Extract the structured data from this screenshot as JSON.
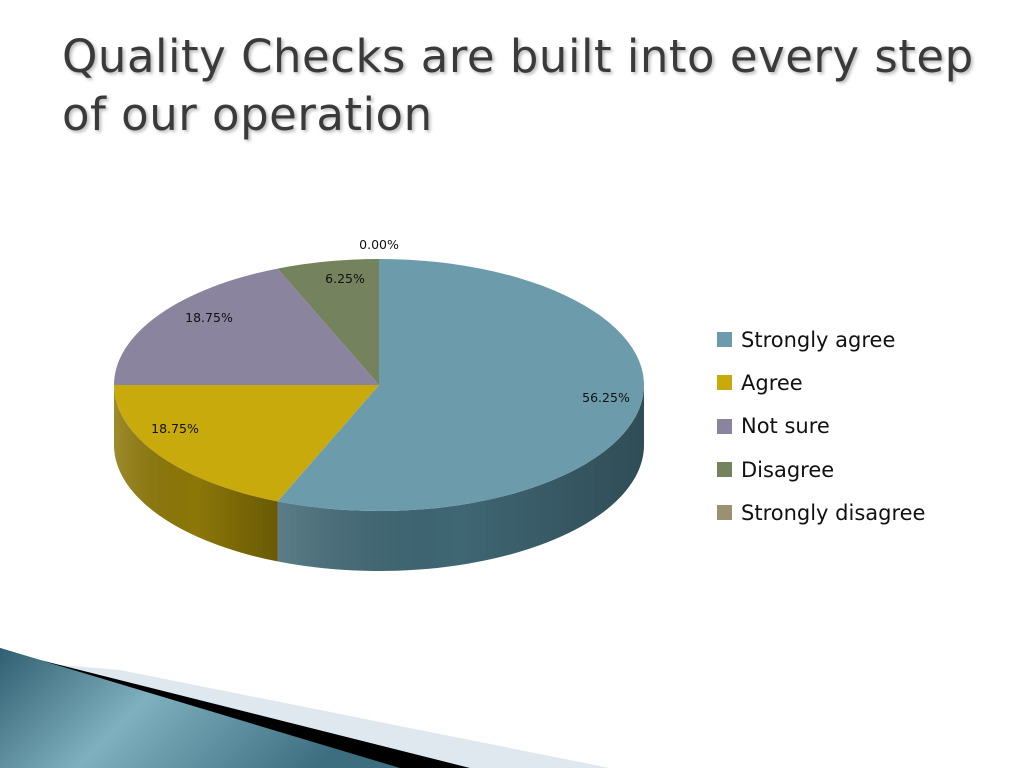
{
  "slide": {
    "title": "Quality Checks are built into every step of our operation"
  },
  "chart_data": {
    "type": "pie",
    "style": "3d",
    "categories": [
      "Strongly agree",
      "Agree",
      "Not sure",
      "Disagree",
      "Strongly disagree"
    ],
    "values": [
      56.25,
      18.75,
      18.75,
      6.25,
      0.0
    ],
    "data_labels": [
      "56.25%",
      "18.75%",
      "18.75%",
      "6.25%",
      "0.00%"
    ],
    "colors": [
      "#6c9cab",
      "#c8aa0c",
      "#8a849f",
      "#74835e",
      "#9b9072"
    ],
    "side_colors": [
      "#3f6673",
      "#8c7708",
      "#5d5872",
      "#505b40",
      "#6d6550"
    ],
    "legend_position": "right"
  }
}
